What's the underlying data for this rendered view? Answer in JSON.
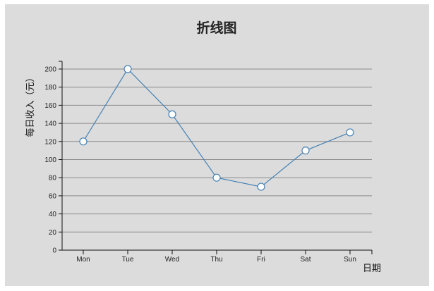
{
  "chart_data": {
    "type": "line",
    "title": "折线图",
    "xlabel": "日期",
    "ylabel": "每日收入（元）",
    "categories": [
      "Mon",
      "Tue",
      "Wed",
      "Thu",
      "Fri",
      "Sat",
      "Sun"
    ],
    "values": [
      120,
      200,
      150,
      80,
      70,
      110,
      130
    ],
    "ylim": [
      0,
      200
    ],
    "yticks": [
      0,
      20,
      40,
      60,
      80,
      100,
      120,
      140,
      160,
      180,
      200
    ],
    "grid": true,
    "colors": {
      "line": "#4682b4",
      "marker_fill": "#ffffff",
      "background": "#dcdcdc"
    }
  }
}
